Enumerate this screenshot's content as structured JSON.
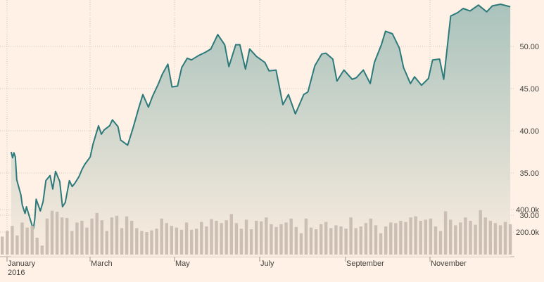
{
  "chart_data": {
    "type": "area",
    "title": "",
    "xlabel": "",
    "ylabel": "",
    "x_ticks": [
      "January",
      "March",
      "May",
      "July",
      "September",
      "November"
    ],
    "x_year_label": "2016",
    "y_ticks": [
      "30.00",
      "35.00",
      "40.00",
      "45.00",
      "50.00"
    ],
    "ylim": [
      27.5,
      55.5
    ],
    "grid": true,
    "colors": {
      "line": "#2c7a7b",
      "area_top": "#a9c3bc",
      "area_bottom": "#fbecdf",
      "volume": "#cbbfb4",
      "grid": "#cec6b9"
    },
    "price": {
      "dates": [
        "2016-01-04",
        "2016-01-05",
        "2016-01-06",
        "2016-01-07",
        "2016-01-08",
        "2016-01-11",
        "2016-01-12",
        "2016-01-13",
        "2016-01-14",
        "2016-01-15",
        "2016-01-19",
        "2016-01-20",
        "2016-01-21",
        "2016-01-22",
        "2016-01-25",
        "2016-01-27",
        "2016-01-29",
        "2016-02-01",
        "2016-02-03",
        "2016-02-05",
        "2016-02-08",
        "2016-02-10",
        "2016-02-12",
        "2016-02-15",
        "2016-02-17",
        "2016-02-19",
        "2016-02-22",
        "2016-02-24",
        "2016-02-26",
        "2016-03-01",
        "2016-03-03",
        "2016-03-07",
        "2016-03-09",
        "2016-03-11",
        "2016-03-15",
        "2016-03-17",
        "2016-03-21",
        "2016-03-23",
        "2016-03-28",
        "2016-04-01",
        "2016-04-05",
        "2016-04-08",
        "2016-04-12",
        "2016-04-15",
        "2016-04-19",
        "2016-04-22",
        "2016-04-26",
        "2016-04-29",
        "2016-05-03",
        "2016-05-06",
        "2016-05-10",
        "2016-05-13",
        "2016-05-18",
        "2016-05-23",
        "2016-05-27",
        "2016-06-01",
        "2016-06-06",
        "2016-06-09",
        "2016-06-14",
        "2016-06-17",
        "2016-06-21",
        "2016-06-24",
        "2016-06-29",
        "2016-07-05",
        "2016-07-08",
        "2016-07-13",
        "2016-07-18",
        "2016-07-22",
        "2016-07-27",
        "2016-08-02",
        "2016-08-05",
        "2016-08-10",
        "2016-08-15",
        "2016-08-18",
        "2016-08-23",
        "2016-08-26",
        "2016-08-31",
        "2016-09-06",
        "2016-09-09",
        "2016-09-14",
        "2016-09-19",
        "2016-09-22",
        "2016-09-27",
        "2016-09-30",
        "2016-10-05",
        "2016-10-10",
        "2016-10-13",
        "2016-10-18",
        "2016-10-21",
        "2016-10-26",
        "2016-10-31",
        "2016-11-03",
        "2016-11-08",
        "2016-11-11",
        "2016-11-16",
        "2016-11-21",
        "2016-11-25",
        "2016-11-30",
        "2016-12-06",
        "2016-12-12",
        "2016-12-16",
        "2016-12-22",
        "2016-12-29"
      ],
      "values": [
        37.5,
        36.8,
        37.4,
        36.9,
        34.2,
        32.4,
        31.2,
        30.7,
        30.2,
        31.0,
        28.8,
        28.4,
        29.5,
        31.9,
        30.5,
        31.6,
        34.1,
        34.7,
        33.1,
        35.2,
        34.0,
        31.0,
        31.5,
        34.1,
        33.4,
        33.8,
        34.6,
        35.4,
        36.0,
        36.9,
        38.4,
        40.6,
        39.6,
        40.1,
        40.6,
        41.3,
        40.5,
        38.9,
        38.3,
        40.4,
        42.7,
        44.3,
        42.8,
        44.1,
        45.5,
        46.7,
        47.9,
        45.2,
        45.3,
        47.5,
        48.6,
        48.4,
        48.9,
        49.3,
        49.7,
        51.4,
        50.2,
        47.6,
        50.2,
        50.2,
        47.3,
        49.7,
        48.8,
        48.1,
        47.1,
        47.2,
        43.1,
        44.3,
        42.0,
        44.3,
        44.6,
        47.7,
        49.1,
        49.2,
        48.5,
        45.9,
        47.2,
        46.1,
        46.3,
        47.2,
        45.6,
        48.1,
        50.2,
        51.8,
        51.5,
        49.8,
        47.5,
        45.6,
        46.4,
        45.4,
        46.2,
        48.4,
        48.5,
        46.1,
        53.6,
        54.0,
        54.5,
        54.2,
        54.9,
        54.1,
        54.8,
        55.0,
        54.7
      ]
    },
    "volume": {
      "y_ticks": [
        "200.0k",
        "400.0k"
      ],
      "ylim": [
        0,
        700000
      ],
      "values": [
        160000,
        210000,
        255000,
        170000,
        285000,
        240000,
        255000,
        150000,
        80000,
        320000,
        390000,
        380000,
        330000,
        325000,
        210000,
        285000,
        300000,
        240000,
        320000,
        370000,
        305000,
        210000,
        330000,
        345000,
        235000,
        340000,
        300000,
        235000,
        210000,
        200000,
        215000,
        230000,
        320000,
        280000,
        255000,
        240000,
        220000,
        285000,
        220000,
        230000,
        290000,
        250000,
        315000,
        300000,
        280000,
        305000,
        360000,
        280000,
        230000,
        310000,
        225000,
        300000,
        295000,
        330000,
        270000,
        245000,
        270000,
        285000,
        320000,
        245000,
        190000,
        320000,
        240000,
        225000,
        270000,
        290000,
        235000,
        260000,
        250000,
        230000,
        330000,
        235000,
        250000,
        280000,
        320000,
        260000,
        190000,
        250000,
        285000,
        280000,
        300000,
        290000,
        330000,
        340000,
        300000,
        310000,
        320000,
        250000,
        210000,
        385000,
        310000,
        260000,
        285000,
        330000,
        300000,
        265000,
        395000,
        330000,
        300000,
        280000,
        260000,
        290000,
        270000
      ]
    }
  }
}
